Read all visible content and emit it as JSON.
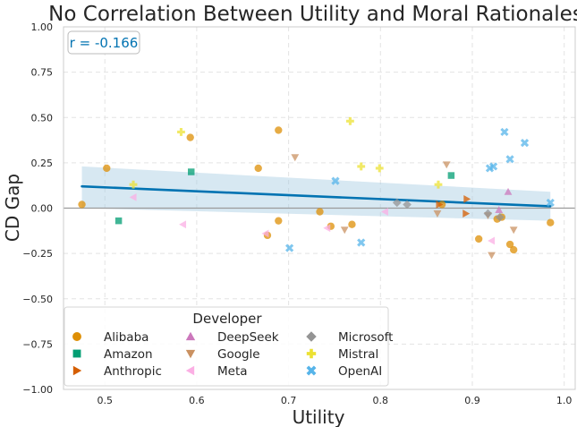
{
  "chart_data": {
    "type": "scatter",
    "title": "No Correlation Between Utility and Moral Rationales",
    "xlabel": "Utility",
    "ylabel": "CD Gap",
    "xlim": [
      0.455,
      1.012
    ],
    "ylim": [
      -1.0,
      1.0
    ],
    "xticks": [
      0.5,
      0.6,
      0.7,
      0.8,
      0.9,
      1.0
    ],
    "xtick_labels": [
      "0.5",
      "0.6",
      "0.7",
      "0.8",
      "0.9",
      "1.0"
    ],
    "yticks": [
      -1.0,
      -0.75,
      -0.5,
      -0.25,
      0.0,
      0.25,
      0.5,
      0.75,
      1.0
    ],
    "ytick_labels": [
      "−1.00",
      "−0.75",
      "−0.50",
      "−0.25",
      "0.00",
      "0.25",
      "0.50",
      "0.75",
      "1.00"
    ],
    "grid": true,
    "zero_line": 0,
    "annotation": "r = -0.166",
    "annotation_color": "#0173b2",
    "legend_title": "Developer",
    "legend_placement": "lower-left",
    "regression": {
      "x": [
        0.475,
        0.985
      ],
      "y": [
        0.12,
        0.01
      ],
      "color": "#0173b2",
      "ci_upper": [
        0.23,
        0.09
      ],
      "ci_lower": [
        0.0,
        -0.07
      ],
      "ci_color": "#a6cde3"
    },
    "series": [
      {
        "name": "Alibaba",
        "marker": "circle",
        "color": "#de8f05",
        "x": [
          0.475,
          0.502,
          0.593,
          0.667,
          0.689,
          0.689,
          0.677,
          0.734,
          0.746,
          0.769,
          0.867,
          0.907,
          0.927,
          0.932,
          0.941,
          0.945,
          0.985
        ],
        "y": [
          0.02,
          0.22,
          0.39,
          0.22,
          0.43,
          -0.07,
          -0.15,
          -0.02,
          -0.1,
          -0.09,
          0.02,
          -0.17,
          -0.06,
          -0.05,
          -0.2,
          -0.23,
          -0.08
        ]
      },
      {
        "name": "Amazon",
        "marker": "square",
        "color": "#029e73",
        "x": [
          0.515,
          0.594,
          0.877
        ],
        "y": [
          -0.07,
          0.2,
          0.18
        ]
      },
      {
        "name": "Anthropic",
        "marker": "triangle-right",
        "color": "#d55e00",
        "x": [
          0.864,
          0.893,
          0.894
        ],
        "y": [
          0.02,
          -0.03,
          0.05
        ]
      },
      {
        "name": "DeepSeek",
        "marker": "triangle-up",
        "color": "#cc78bc",
        "x": [
          0.929,
          0.939
        ],
        "y": [
          -0.01,
          0.09
        ]
      },
      {
        "name": "Google",
        "marker": "triangle-down",
        "color": "#ca9161",
        "x": [
          0.707,
          0.761,
          0.862,
          0.872,
          0.917,
          0.921,
          0.945
        ],
        "y": [
          0.28,
          -0.12,
          -0.03,
          0.24,
          -0.04,
          -0.26,
          -0.12
        ]
      },
      {
        "name": "Meta",
        "marker": "triangle-left",
        "color": "#fbafe4",
        "x": [
          0.531,
          0.585,
          0.675,
          0.742,
          0.805,
          0.921
        ],
        "y": [
          0.06,
          -0.09,
          -0.14,
          -0.11,
          -0.02,
          -0.18
        ]
      },
      {
        "name": "Microsoft",
        "marker": "diamond",
        "color": "#949494",
        "x": [
          0.818,
          0.829,
          0.917,
          0.93
        ],
        "y": [
          0.03,
          0.02,
          -0.03,
          -0.05
        ]
      },
      {
        "name": "Mistral",
        "marker": "plus",
        "color": "#ece133",
        "x": [
          0.531,
          0.583,
          0.767,
          0.779,
          0.799,
          0.863
        ],
        "y": [
          0.13,
          0.42,
          0.48,
          0.23,
          0.22,
          0.13
        ]
      },
      {
        "name": "OpenAI",
        "marker": "x",
        "color": "#56b4e9",
        "x": [
          0.701,
          0.751,
          0.779,
          0.919,
          0.923,
          0.935,
          0.941,
          0.957,
          0.985
        ],
        "y": [
          -0.22,
          0.15,
          -0.19,
          0.22,
          0.23,
          0.42,
          0.27,
          0.36,
          0.03
        ]
      }
    ]
  }
}
